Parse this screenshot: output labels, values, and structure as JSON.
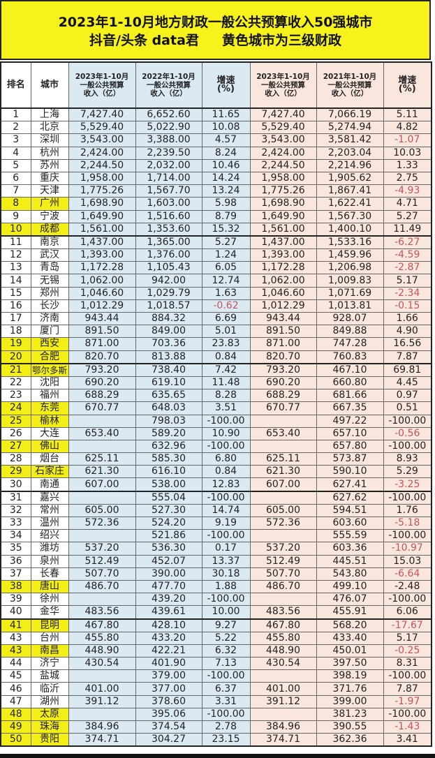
{
  "title": {
    "line1": "2023年1-10月地方财政一般公共预算收入50强城市",
    "line2": "抖音/头条 data君     黄色城市为三级财政"
  },
  "colors": {
    "highlight": "#f3ee16",
    "blue_cols": "#dbe9f3",
    "peach_cols": "#f9e6dc",
    "negative": "#c4545f",
    "title_bg": "#f7f21c"
  },
  "headers": [
    "排名",
    "城市",
    "2023年1-10月\n一般公共预算\n收入（亿）",
    "2022年1-10月\n一般公共预算\n收入（亿）",
    "增速\n(%)",
    "2023年1-10月\n一般公共预算\n收入（亿）",
    "2021年1-10月\n一般公共预算\n收入（亿）",
    "增速\n(%)"
  ],
  "rows": [
    {
      "c": [
        "1",
        "上海",
        "7,427.40",
        "6,652.60",
        "11.65",
        "7,427.40",
        "7,066.19",
        "5.11"
      ],
      "hl": false,
      "red": []
    },
    {
      "c": [
        "2",
        "北京",
        "5,529.40",
        "5,022.90",
        "10.08",
        "5,529.40",
        "5,274.94",
        "4.82"
      ],
      "hl": false,
      "red": []
    },
    {
      "c": [
        "3",
        "深圳",
        "3,543.00",
        "3,388.00",
        "4.57",
        "3,543.00",
        "3,581.42",
        "-1.07"
      ],
      "hl": false,
      "red": [
        7
      ]
    },
    {
      "c": [
        "4",
        "杭州",
        "2,424.00",
        "2,239.50",
        "8.24",
        "2,424.00",
        "2,203.04",
        "10.03"
      ],
      "hl": false,
      "red": []
    },
    {
      "c": [
        "5",
        "苏州",
        "2,244.50",
        "2,032.00",
        "10.46",
        "2,244.50",
        "2,214.96",
        "1.33"
      ],
      "hl": false,
      "red": []
    },
    {
      "c": [
        "6",
        "重庆",
        "1,958.00",
        "1,714.00",
        "14.24",
        "1,958.00",
        "1,905.62",
        "2.75"
      ],
      "hl": false,
      "red": []
    },
    {
      "c": [
        "7",
        "天津",
        "1,775.26",
        "1,567.70",
        "13.24",
        "1,775.26",
        "1,867.41",
        "-4.93"
      ],
      "hl": false,
      "red": [
        7
      ]
    },
    {
      "c": [
        "8",
        "广州",
        "1,698.90",
        "1,603.00",
        "5.98",
        "1,698.90",
        "1,622.41",
        "4.71"
      ],
      "hl": true,
      "red": []
    },
    {
      "c": [
        "9",
        "宁波",
        "1,649.90",
        "1,516.60",
        "8.79",
        "1,649.90",
        "1,567.30",
        "5.27"
      ],
      "hl": false,
      "red": []
    },
    {
      "c": [
        "10",
        "成都",
        "1,561.00",
        "1,353.60",
        "15.32",
        "1,561.00",
        "1,400.10",
        "11.49"
      ],
      "hl": true,
      "red": []
    },
    {
      "c": [
        "11",
        "南京",
        "1,437.00",
        "1,365.00",
        "5.27",
        "1,437.00",
        "1,533.16",
        "-6.27"
      ],
      "hl": false,
      "red": [
        7
      ]
    },
    {
      "c": [
        "12",
        "武汉",
        "1,393.00",
        "1,376.00",
        "1.24",
        "1,393.00",
        "1,459.96",
        "-4.59"
      ],
      "hl": false,
      "red": [
        7
      ]
    },
    {
      "c": [
        "13",
        "青岛",
        "1,172.28",
        "1,105.43",
        "6.05",
        "1,172.28",
        "1,206.98",
        "-2.87"
      ],
      "hl": false,
      "red": [
        7
      ]
    },
    {
      "c": [
        "14",
        "无锡",
        "1,062.00",
        "942.00",
        "12.74",
        "1,062.00",
        "1,009.83",
        "5.17"
      ],
      "hl": false,
      "red": []
    },
    {
      "c": [
        "15",
        "郑州",
        "1,046.60",
        "1,029.79",
        "1.63",
        "1,046.60",
        "1,071.69",
        "-2.34"
      ],
      "hl": false,
      "red": [
        7
      ]
    },
    {
      "c": [
        "16",
        "长沙",
        "1,012.29",
        "1,018.57",
        "-0.62",
        "1,012.29",
        "1,013.81",
        "-0.15"
      ],
      "hl": false,
      "red": [
        4,
        7
      ]
    },
    {
      "c": [
        "17",
        "济南",
        "943.44",
        "884.32",
        "6.69",
        "943.44",
        "928.07",
        "1.66"
      ],
      "hl": false,
      "red": []
    },
    {
      "c": [
        "18",
        "厦门",
        "891.50",
        "849.00",
        "5.01",
        "891.50",
        "849.88",
        "4.90"
      ],
      "hl": false,
      "red": []
    },
    {
      "c": [
        "19",
        "西安",
        "871.00",
        "703.36",
        "23.83",
        "871.00",
        "747.28",
        "16.56"
      ],
      "hl": true,
      "red": []
    },
    {
      "c": [
        "20",
        "合肥",
        "820.70",
        "813.88",
        "0.84",
        "820.70",
        "760.83",
        "7.87"
      ],
      "hl": true,
      "red": []
    },
    {
      "c": [
        "21",
        "鄂尔多斯",
        "793.20",
        "738.40",
        "7.42",
        "793.20",
        "467.10",
        "69.81"
      ],
      "hl": true,
      "red": []
    },
    {
      "c": [
        "22",
        "沈阳",
        "690.20",
        "619.10",
        "11.48",
        "690.20",
        "660.80",
        "4.45"
      ],
      "hl": false,
      "red": []
    },
    {
      "c": [
        "23",
        "福州",
        "688.29",
        "635.65",
        "8.28",
        "688.29",
        "681.66",
        "0.97"
      ],
      "hl": false,
      "red": []
    },
    {
      "c": [
        "24",
        "东莞",
        "670.77",
        "648.03",
        "3.51",
        "670.77",
        "667.35",
        "0.51"
      ],
      "hl": true,
      "red": []
    },
    {
      "c": [
        "25",
        "榆林",
        "",
        "798.03",
        "-100.00",
        "",
        "497.22",
        "-100.00"
      ],
      "hl": true,
      "red": []
    },
    {
      "c": [
        "26",
        "大连",
        "653.40",
        "589.20",
        "10.90",
        "653.40",
        "657.10",
        "-0.56"
      ],
      "hl": false,
      "red": [
        7
      ]
    },
    {
      "c": [
        "27",
        "佛山",
        "",
        "632.96",
        "-100.00",
        "",
        "657.80",
        "-100.00"
      ],
      "hl": true,
      "red": []
    },
    {
      "c": [
        "28",
        "烟台",
        "625.11",
        "585.30",
        "6.80",
        "625.11",
        "573.87",
        "8.93"
      ],
      "hl": false,
      "red": []
    },
    {
      "c": [
        "29",
        "石家庄",
        "621.30",
        "616.10",
        "0.84",
        "621.30",
        "590.10",
        "5.29"
      ],
      "hl": true,
      "red": []
    },
    {
      "c": [
        "30",
        "南通",
        "607.00",
        "538.00",
        "12.83",
        "607.00",
        "627.41",
        "-3.25"
      ],
      "hl": false,
      "red": [
        7
      ]
    },
    {
      "c": [
        "31",
        "嘉兴",
        "",
        "555.04",
        "-100.00",
        "",
        "627.62",
        "-100.00"
      ],
      "hl": false,
      "red": []
    },
    {
      "c": [
        "32",
        "常州",
        "605.00",
        "527.30",
        "14.74",
        "605.00",
        "594.51",
        "1.76"
      ],
      "hl": false,
      "red": []
    },
    {
      "c": [
        "33",
        "温州",
        "572.36",
        "524.20",
        "9.19",
        "572.36",
        "603.60",
        "-5.18"
      ],
      "hl": false,
      "red": [
        7
      ]
    },
    {
      "c": [
        "34",
        "绍兴",
        "",
        "521.86",
        "-100.00",
        "",
        "555.59",
        "-100.00"
      ],
      "hl": false,
      "red": []
    },
    {
      "c": [
        "35",
        "潍坊",
        "537.20",
        "536.30",
        "0.17",
        "537.20",
        "603.36",
        "-10.97"
      ],
      "hl": false,
      "red": [
        7
      ]
    },
    {
      "c": [
        "36",
        "泉州",
        "512.49",
        "452.07",
        "13.37",
        "512.49",
        "445.51",
        "15.03"
      ],
      "hl": false,
      "red": []
    },
    {
      "c": [
        "37",
        "长春",
        "507.70",
        "390.00",
        "30.18",
        "507.70",
        "543.80",
        "-6.64"
      ],
      "hl": false,
      "red": [
        7
      ]
    },
    {
      "c": [
        "38",
        "唐山",
        "486.70",
        "477.70",
        "1.88",
        "486.70",
        "499.10",
        "-2.48"
      ],
      "hl": true,
      "red": []
    },
    {
      "c": [
        "39",
        "徐州",
        "",
        "439.20",
        "-100.00",
        "",
        "476.07",
        "-100.00"
      ],
      "hl": false,
      "red": []
    },
    {
      "c": [
        "40",
        "金华",
        "483.56",
        "439.61",
        "10.00",
        "483.56",
        "455.91",
        "6.06"
      ],
      "hl": false,
      "red": []
    },
    {
      "c": [
        "41",
        "昆明",
        "467.80",
        "428.10",
        "9.27",
        "467.80",
        "568.20",
        "-17.67"
      ],
      "hl": true,
      "red": [
        7
      ]
    },
    {
      "c": [
        "43",
        "台州",
        "455.80",
        "433.20",
        "5.22",
        "455.80",
        "433.40",
        "5.17"
      ],
      "hl": false,
      "red": []
    },
    {
      "c": [
        "43",
        "南昌",
        "448.90",
        "422.21",
        "6.32",
        "448.90",
        "450.01",
        "-0.25"
      ],
      "hl": true,
      "red": [
        7
      ]
    },
    {
      "c": [
        "44",
        "济宁",
        "430.54",
        "401.90",
        "7.13",
        "430.54",
        "397.50",
        "8.31"
      ],
      "hl": false,
      "red": []
    },
    {
      "c": [
        "45",
        "盐城",
        "",
        "379.00",
        "-100.00",
        "",
        "398.19",
        "-100.00"
      ],
      "hl": false,
      "red": []
    },
    {
      "c": [
        "46",
        "临沂",
        "401.00",
        "377.00",
        "6.37",
        "401.00",
        "371.76",
        "7.87"
      ],
      "hl": false,
      "red": []
    },
    {
      "c": [
        "47",
        "湖州",
        "391.12",
        "378.60",
        "3.31",
        "391.12",
        "399.00",
        "-1.97"
      ],
      "hl": false,
      "red": [
        7
      ]
    },
    {
      "c": [
        "48",
        "太原",
        "",
        "395.06",
        "-100.00",
        "",
        "381.23",
        "-100.00"
      ],
      "hl": true,
      "red": []
    },
    {
      "c": [
        "49",
        "珠海",
        "384.96",
        "374.54",
        "2.78",
        "384.96",
        "390.55",
        "-1.43"
      ],
      "hl": true,
      "red": [
        7
      ]
    },
    {
      "c": [
        "50",
        "贵阳",
        "374.71",
        "304.27",
        "23.15",
        "374.71",
        "362.36",
        "3.41"
      ],
      "hl": true,
      "red": []
    }
  ]
}
